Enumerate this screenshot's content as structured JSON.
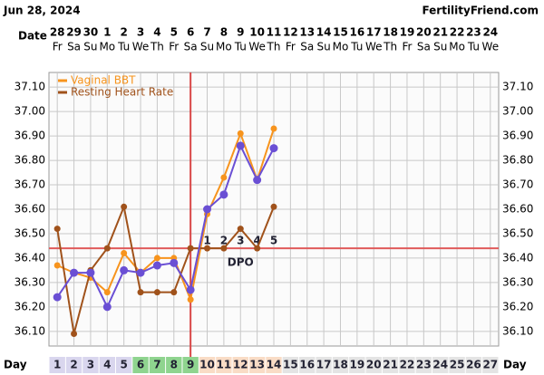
{
  "chart_data": {
    "type": "line",
    "title": "Jun 28, 2024",
    "site": "FertilityFriend.com",
    "date_label": "Date",
    "day_label": "Day",
    "dates": [
      "28",
      "29",
      "30",
      "1",
      "2",
      "3",
      "4",
      "5",
      "6",
      "7",
      "8",
      "9",
      "10",
      "11",
      "12",
      "13",
      "14",
      "15",
      "16",
      "17",
      "18",
      "19",
      "20",
      "21",
      "22",
      "23",
      "24"
    ],
    "weekdays": [
      "Fr",
      "Sa",
      "Su",
      "Mo",
      "Tu",
      "We",
      "Th",
      "Fr",
      "Sa",
      "Su",
      "Mo",
      "Tu",
      "We",
      "Th",
      "Fr",
      "Sa",
      "Su",
      "Mo",
      "Tu",
      "We",
      "Th",
      "Fr",
      "Sa",
      "Su",
      "Mo",
      "Tu",
      "We"
    ],
    "x": [
      1,
      2,
      3,
      4,
      5,
      6,
      7,
      8,
      9,
      10,
      11,
      12,
      13,
      14,
      15,
      16,
      17,
      18,
      19,
      20,
      21,
      22,
      23,
      24,
      25,
      26,
      27
    ],
    "day_colors": [
      "#d9d6ee",
      "#d9d6ee",
      "#d9d6ee",
      "#d9d6ee",
      "#d9d6ee",
      "#8fd48f",
      "#8fd48f",
      "#8fd48f",
      "#8fd48f",
      "#f9dcc6",
      "#f9dcc6",
      "#f9dcc6",
      "#f9dcc6",
      "#f9dcc6",
      "#e4e4e4",
      "#e4e4e4",
      "#e4e4e4",
      "#e4e4e4",
      "#e4e4e4",
      "#e4e4e4",
      "#e4e4e4",
      "#e4e4e4",
      "#e4e4e4",
      "#e4e4e4",
      "#e4e4e4",
      "#e4e4e4",
      "#e4e4e4"
    ],
    "series": [
      {
        "name": "Vaginal BBT",
        "color": "#f7941d",
        "values": [
          36.37,
          36.34,
          36.32,
          36.26,
          36.42,
          36.34,
          36.4,
          36.4,
          36.23,
          36.58,
          36.73,
          36.91,
          36.72,
          36.93,
          null,
          null,
          null,
          null,
          null,
          null,
          null,
          null,
          null,
          null,
          null,
          null,
          null
        ]
      },
      {
        "name": "Resting Heart Rate",
        "color": "#a0521b",
        "values": [
          36.52,
          36.09,
          36.35,
          36.44,
          36.61,
          36.26,
          36.26,
          36.26,
          36.44,
          36.44,
          36.44,
          36.52,
          36.44,
          36.61,
          null,
          null,
          null,
          null,
          null,
          null,
          null,
          null,
          null,
          null,
          null,
          null,
          null
        ]
      },
      {
        "color": "#6a4fd4",
        "values": [
          36.24,
          36.34,
          36.34,
          36.2,
          36.35,
          36.34,
          36.37,
          36.38,
          36.27,
          36.6,
          36.66,
          36.86,
          36.72,
          36.85,
          null,
          null,
          null,
          null,
          null,
          null,
          null,
          null,
          null,
          null,
          null,
          null,
          null
        ]
      }
    ],
    "coverline": 36.44,
    "coverline_color": "#e05a5a",
    "ovulation_day": 9,
    "ovulation_color": "#d94848",
    "dpo_labels": [
      "1",
      "2",
      "3",
      "4",
      "5"
    ],
    "dpo_start_day": 10,
    "dpo_text": "DPO",
    "ylim": [
      36.04,
      37.16
    ],
    "yticks": [
      {
        "value": 36.1,
        "label": "36.10"
      },
      {
        "value": 36.2,
        "label": "36.20"
      },
      {
        "value": 36.3,
        "label": "36.30"
      },
      {
        "value": 36.4,
        "label": "36.40"
      },
      {
        "value": 36.5,
        "label": "36.50"
      },
      {
        "value": 36.6,
        "label": "36.60"
      },
      {
        "value": 36.7,
        "label": "36.70"
      },
      {
        "value": 36.8,
        "label": "36.80"
      },
      {
        "value": 36.9,
        "label": "36.90"
      },
      {
        "value": 37.0,
        "label": "37.00"
      },
      {
        "value": 37.1,
        "label": "37.10"
      }
    ],
    "grid": true
  }
}
